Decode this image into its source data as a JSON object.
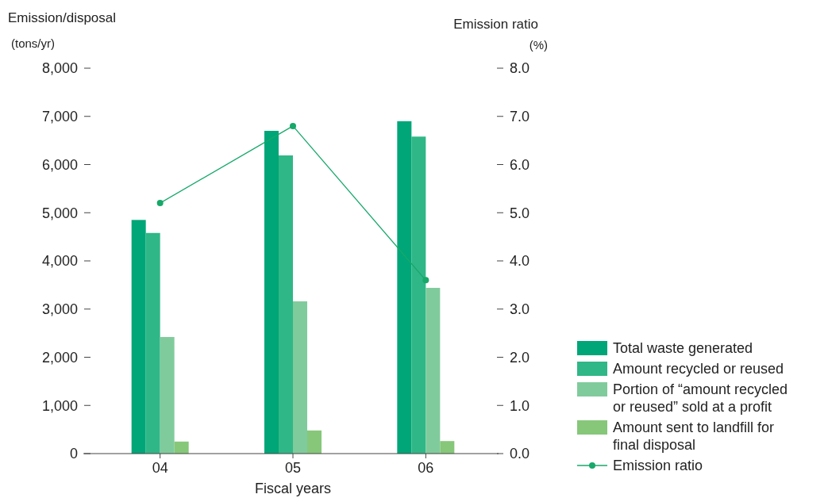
{
  "chart_data": {
    "type": "bar",
    "xlabel": "Fiscal years",
    "ylabel": "Emission/disposal (tons/yr)",
    "y2label": "Emission ratio (%)",
    "categories": [
      "04",
      "05",
      "06"
    ],
    "series": [
      {
        "name": "Total waste generated",
        "color": "#00a677",
        "values": [
          4850,
          6700,
          6900
        ]
      },
      {
        "name": "Amount recycled or reused",
        "color": "#30b787",
        "values": [
          4580,
          6190,
          6580
        ]
      },
      {
        "name": "Portion of “amount recycled or reused” sold at a profit",
        "color": "#80cb9c",
        "values": [
          2420,
          3160,
          3440
        ]
      },
      {
        "name": "Amount sent to landfill for final disposal",
        "color": "#86c77a",
        "values": [
          250,
          480,
          260
        ]
      },
      {
        "name": "Emission ratio",
        "type": "line",
        "axis": "y2",
        "color": "#17a86a",
        "marker": "circle",
        "values": [
          5.2,
          6.8,
          3.6
        ]
      }
    ],
    "ylim": [
      0,
      8000
    ],
    "yticks": [
      0,
      {
        "value": 1000,
        "label": "1,000"
      },
      {
        "value": 2000,
        "label": "2,000"
      },
      {
        "value": 3000,
        "label": "3,000"
      },
      {
        "value": 4000,
        "label": "4,000"
      },
      {
        "value": 5000,
        "label": "5,000"
      },
      {
        "value": 6000,
        "label": "6,000"
      },
      {
        "value": 7000,
        "label": "7,000"
      },
      {
        "value": 8000,
        "label": "8,000"
      }
    ],
    "y2lim": [
      0,
      8
    ],
    "y2ticks": [
      {
        "value": 0,
        "label": "0.0"
      },
      {
        "value": 1,
        "label": "1.0"
      },
      {
        "value": 2,
        "label": "2.0"
      },
      {
        "value": 3,
        "label": "3.0"
      },
      {
        "value": 4,
        "label": "4.0"
      },
      {
        "value": 5,
        "label": "5.0"
      },
      {
        "value": 6,
        "label": "6.0"
      },
      {
        "value": 7,
        "label": "7.0"
      },
      {
        "value": 8,
        "label": "8.0"
      }
    ],
    "legend": "bottom right",
    "grid": false
  }
}
